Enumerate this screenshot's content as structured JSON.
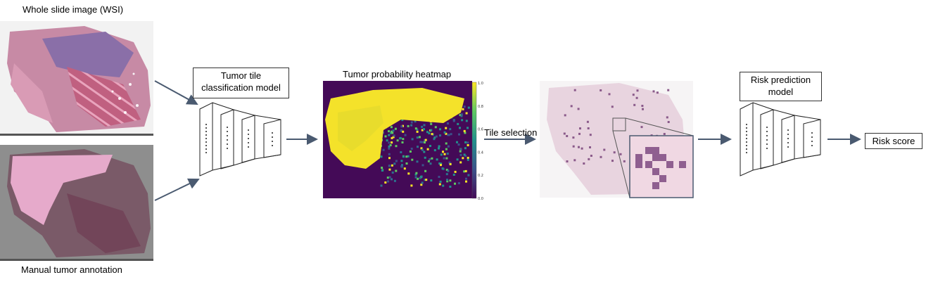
{
  "labels": {
    "wsi_title": "Whole slide image (WSI)",
    "annotation_title": "Manual tumor annotation",
    "tile_model": [
      "Tumor tile",
      "classification model"
    ],
    "heatmap_title": "Tumor probability heatmap",
    "tile_selection": "Tile selection",
    "risk_model": [
      "Risk prediction",
      "model"
    ],
    "risk_score": "Risk score"
  },
  "colorbar_ticks": [
    "1.0",
    "0.8",
    "0.6",
    "0.4",
    "0.2",
    "0.0"
  ],
  "colors": {
    "arrow": "#4a5a70",
    "tissue_pink": "#c77a9a",
    "tissue_purple": "#7a4d8f",
    "viridis_yellow": "#f0e62a",
    "viridis_dark": "#440a57",
    "selected_tile": "#8a5a8a"
  },
  "icons": [
    "network-layers-icon",
    "network-layers-icon"
  ]
}
